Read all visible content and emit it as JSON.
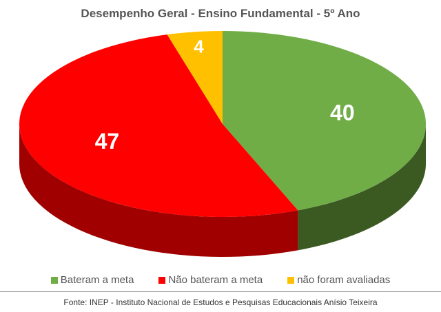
{
  "chart_data": {
    "type": "pie",
    "style": "3d",
    "title": "Desempenho Geral - Ensino Fundamental - 5º Ano",
    "slices": [
      {
        "label": "Bateram a meta",
        "value": 40,
        "color": "#70ad47",
        "side_color": "#3a5a22"
      },
      {
        "label": "Não bateram a meta",
        "value": 47,
        "color": "#ff0000",
        "side_color": "#a00000"
      },
      {
        "label": "não foram avaliadas",
        "value": 4,
        "color": "#ffc000",
        "side_color": "#b08400"
      }
    ],
    "legend_position": "bottom"
  },
  "source": "Fonte: INEP  - Instituto Nacional de Estudos e Pesquisas Educacionais Anísio Teixeira"
}
